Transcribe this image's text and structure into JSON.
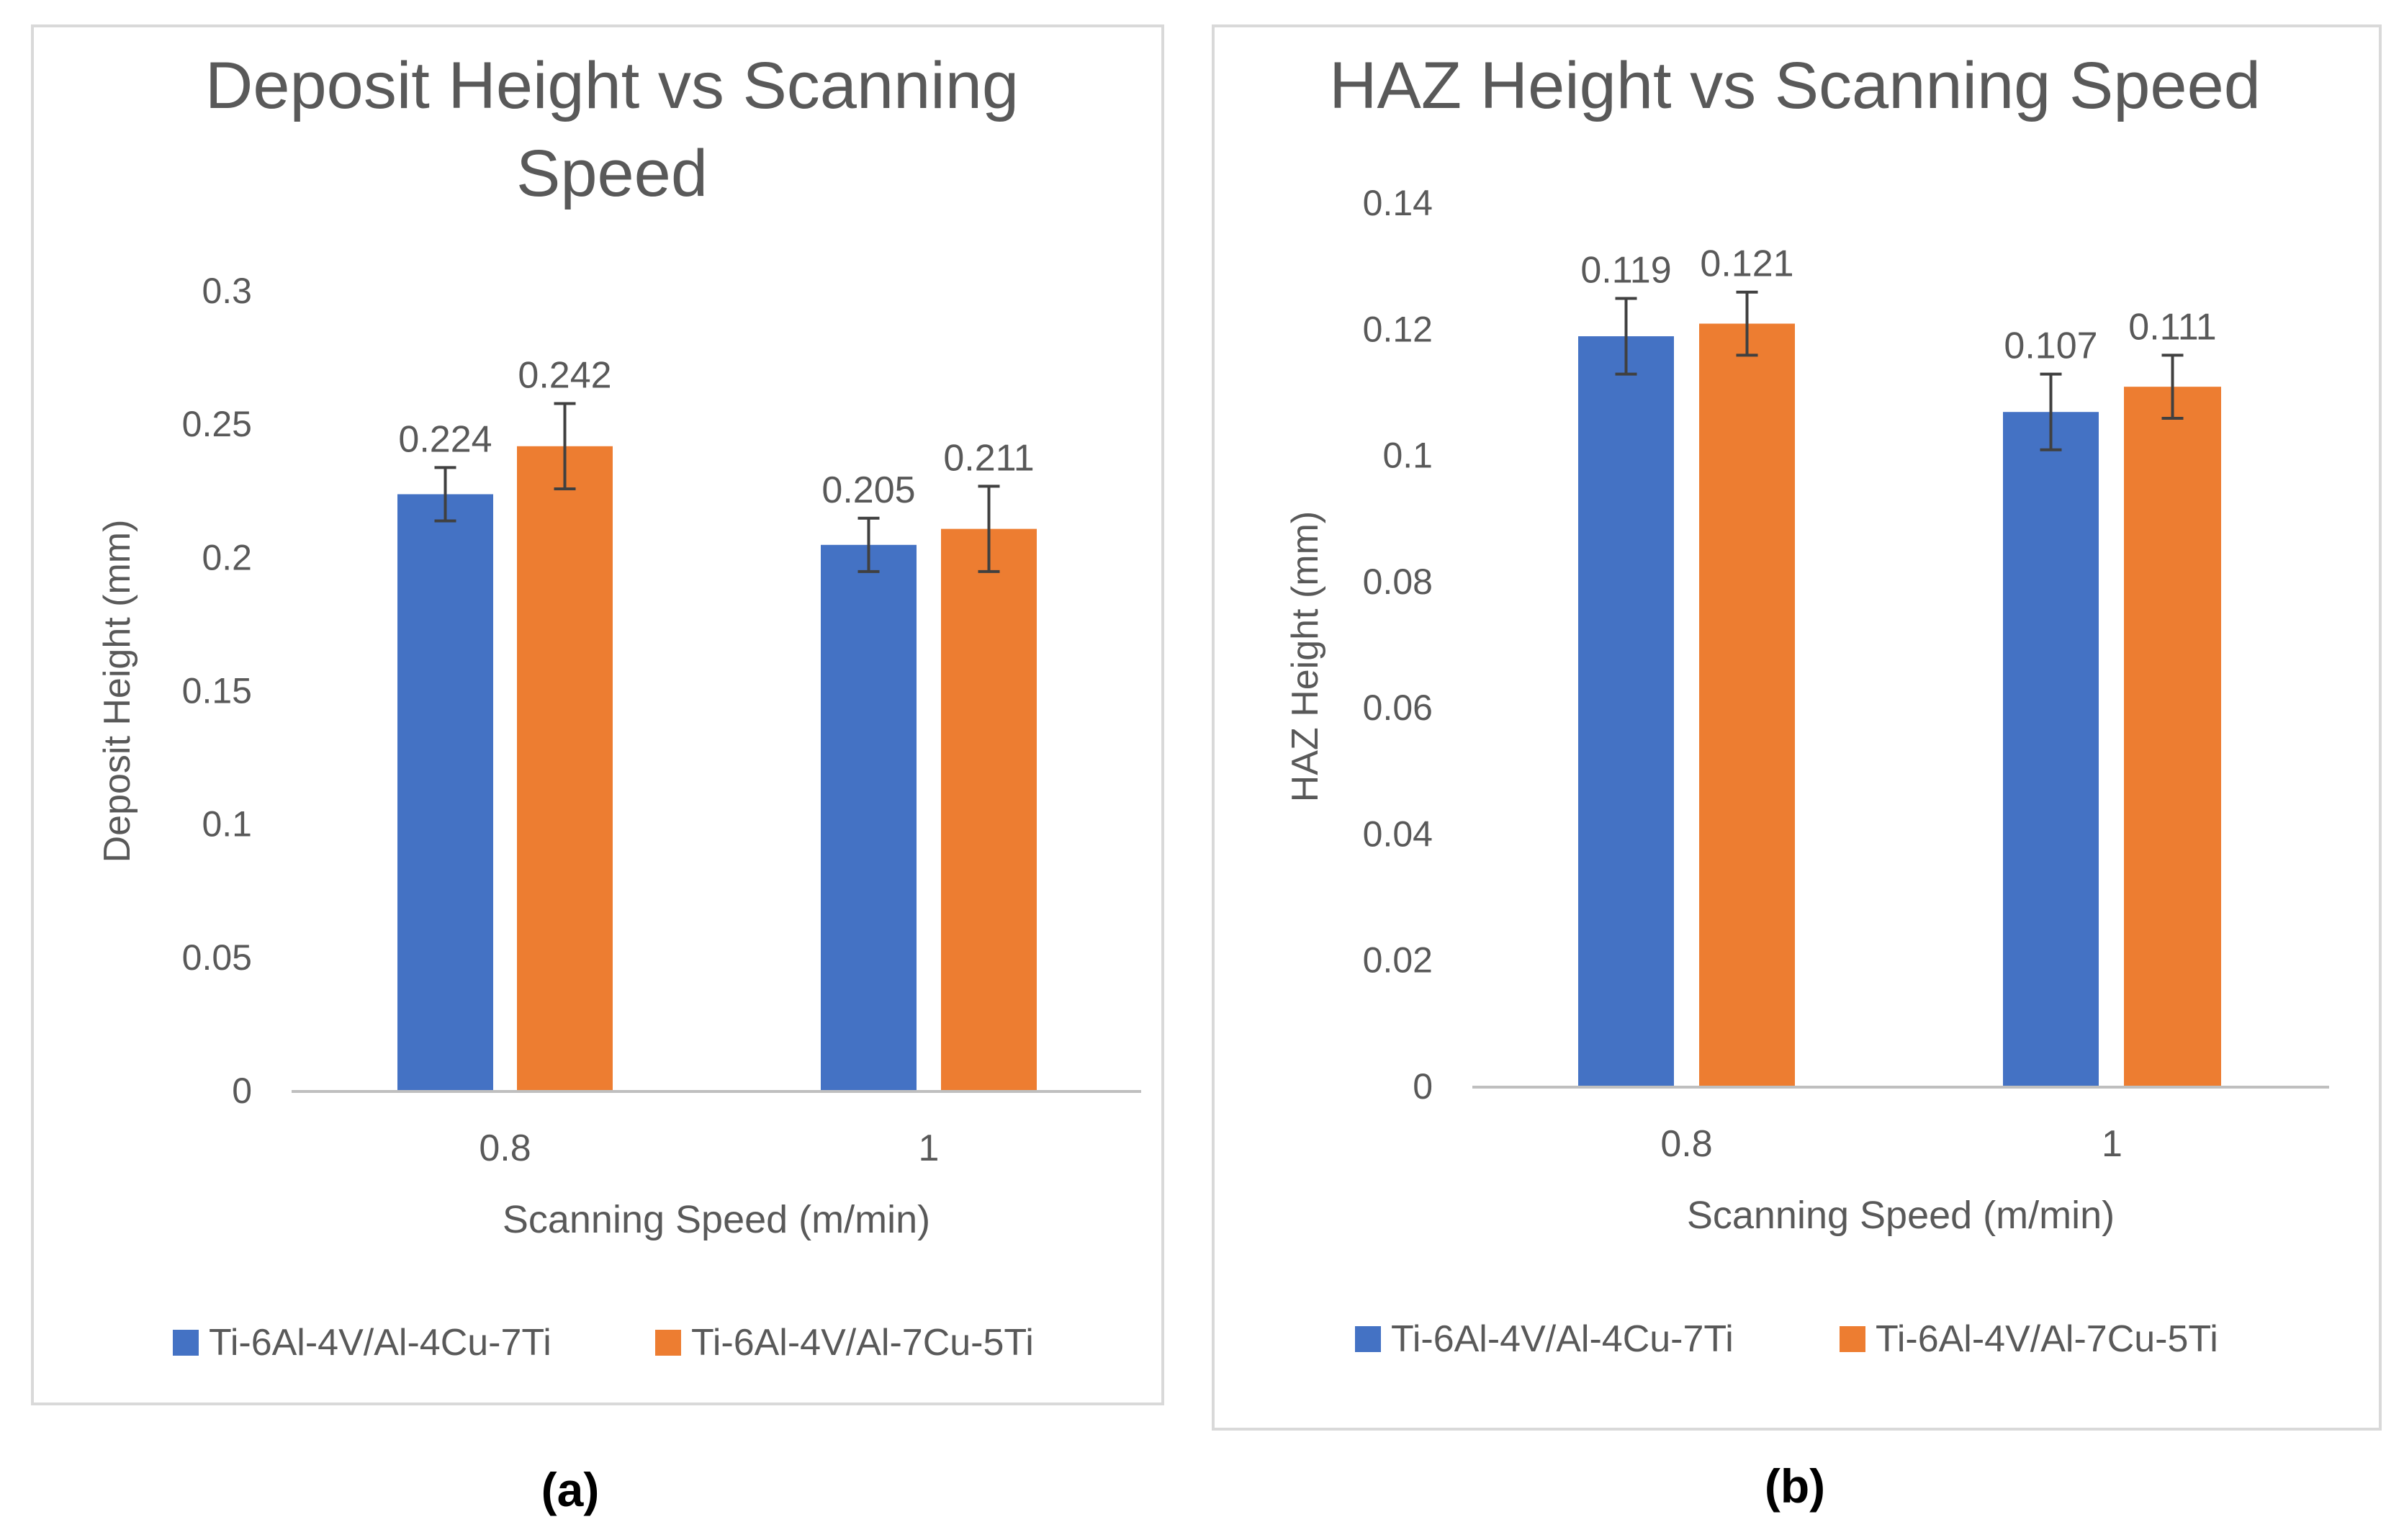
{
  "colors": {
    "series1": "#4472C4",
    "series2": "#ED7D31",
    "text": "#595959",
    "axis": "#BFBFBF",
    "frame": "#D9D9D9",
    "error": "#404040",
    "caption": "#000000"
  },
  "chart_data": [
    {
      "type": "bar",
      "title": "Deposit Height vs Scanning Speed",
      "title_lines": [
        "Deposit Height vs Scanning",
        "Speed"
      ],
      "xlabel": "Scanning Speed  (m/min)",
      "ylabel": "Deposit Height (mm)",
      "categories": [
        "0.8",
        "1"
      ],
      "ylim": [
        0,
        0.3
      ],
      "yticks": [
        "0",
        "0.05",
        "0.1",
        "0.15",
        "0.2",
        "0.25",
        "0.3"
      ],
      "ytick_values": [
        0,
        0.05,
        0.1,
        0.15,
        0.2,
        0.25,
        0.3
      ],
      "grid": false,
      "legend_position": "bottom",
      "series": [
        {
          "name": "Ti-6Al-4V/Al-4Cu-7Ti",
          "values": [
            0.224,
            0.205
          ],
          "labels": [
            "0.224",
            "0.205"
          ],
          "errors": [
            0.01,
            0.01
          ]
        },
        {
          "name": "Ti-6Al-4V/Al-7Cu-5Ti",
          "values": [
            0.242,
            0.211
          ],
          "labels": [
            "0.242",
            "0.211"
          ],
          "errors": [
            0.016,
            0.016
          ]
        }
      ],
      "caption": "(a)"
    },
    {
      "type": "bar",
      "title": "HAZ Height vs Scanning Speed",
      "title_lines": [
        "HAZ Height vs Scanning Speed"
      ],
      "xlabel": "Scanning Speed  (m/min)",
      "ylabel": "HAZ Height (mm)",
      "categories": [
        "0.8",
        "1"
      ],
      "ylim": [
        0,
        0.14
      ],
      "yticks": [
        "0",
        "0.02",
        "0.04",
        "0.06",
        "0.08",
        "0.1",
        "0.12",
        "0.14"
      ],
      "ytick_values": [
        0,
        0.02,
        0.04,
        0.06,
        0.08,
        0.1,
        0.12,
        0.14
      ],
      "grid": false,
      "legend_position": "bottom",
      "series": [
        {
          "name": "Ti-6Al-4V/Al-4Cu-7Ti",
          "values": [
            0.119,
            0.107
          ],
          "labels": [
            "0.119",
            "0.107"
          ],
          "errors": [
            0.006,
            0.006
          ]
        },
        {
          "name": "Ti-6Al-4V/Al-7Cu-5Ti",
          "values": [
            0.121,
            0.111
          ],
          "labels": [
            "0.121",
            "0.111"
          ],
          "errors": [
            0.005,
            0.005
          ]
        }
      ],
      "caption": "(b)"
    }
  ]
}
